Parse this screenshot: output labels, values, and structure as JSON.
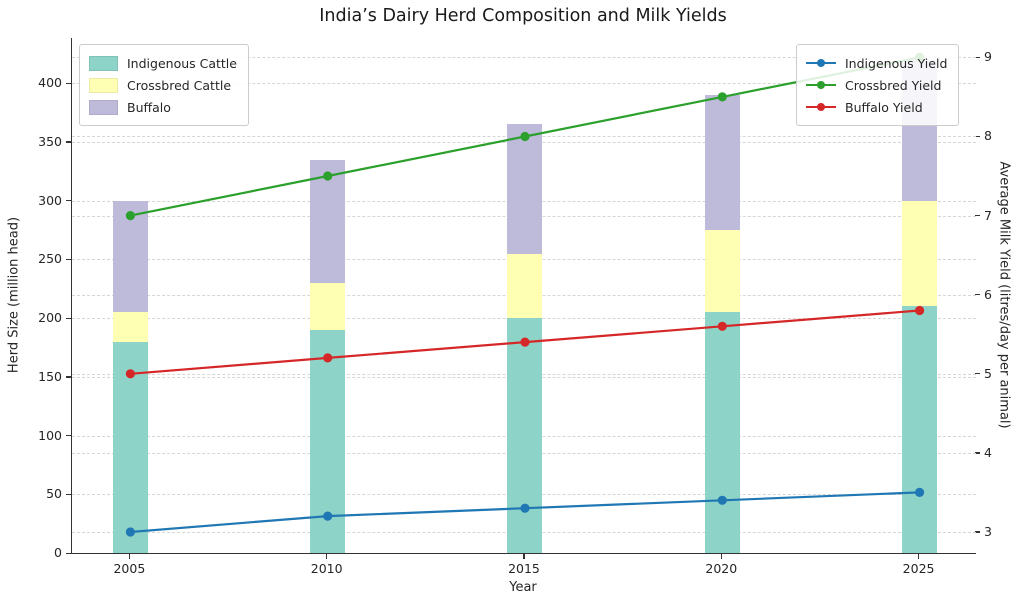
{
  "title": "India’s Dairy Herd Composition and Milk Yields",
  "x_axis": {
    "label": "Year",
    "categories": [
      "2005",
      "2010",
      "2015",
      "2020",
      "2025"
    ]
  },
  "left_axis": {
    "label": "Herd Size (million head)",
    "ticks": [
      0,
      50,
      100,
      150,
      200,
      250,
      300,
      350,
      400
    ],
    "range": [
      0,
      438.5
    ]
  },
  "right_axis": {
    "label": "Average Milk Yield (litres/day per animal)",
    "ticks": [
      3,
      4,
      5,
      6,
      7,
      8,
      9
    ],
    "range": [
      2.734,
      9.245
    ]
  },
  "colors": {
    "indigenous_cattle": "#8dd3c7",
    "crossbred_cattle": "#ffffb3",
    "buffalo": "#bebada",
    "indigenous_yield": "#1f77b4",
    "crossbred_yield": "#2ca02c",
    "buffalo_yield": "#d62728",
    "grid": "#d6d6d6",
    "spine": "#333333",
    "text": "#262626"
  },
  "chart_data": [
    {
      "type": "bar",
      "stacked": true,
      "title": "India’s Dairy Herd Composition and Milk Yields",
      "categories": [
        "2005",
        "2010",
        "2015",
        "2020",
        "2025"
      ],
      "series": [
        {
          "name": "Indigenous Cattle",
          "values": [
            180,
            190,
            200,
            205,
            210
          ],
          "color": "#8dd3c7"
        },
        {
          "name": "Crossbred Cattle",
          "values": [
            25,
            40,
            55,
            70,
            90
          ],
          "color": "#ffffb3"
        },
        {
          "name": "Buffalo",
          "values": [
            95,
            105,
            110,
            115,
            120
          ],
          "color": "#bebada"
        }
      ],
      "stack_totals": [
        300,
        335,
        365,
        390,
        420
      ],
      "xlabel": "Year",
      "ylabel": "Herd Size (million head)",
      "ylim": [
        0,
        438.5
      ],
      "yticks": [
        0,
        50,
        100,
        150,
        200,
        250,
        300,
        350,
        400
      ],
      "grid": true,
      "legend_position": "upper left"
    },
    {
      "type": "line",
      "axis": "right",
      "categories": [
        "2005",
        "2010",
        "2015",
        "2020",
        "2025"
      ],
      "series": [
        {
          "name": "Indigenous Yield",
          "values": [
            3.0,
            3.2,
            3.3,
            3.4,
            3.5
          ],
          "color": "#1f77b4"
        },
        {
          "name": "Crossbred Yield",
          "values": [
            7.0,
            7.5,
            8.0,
            8.5,
            9.0
          ],
          "color": "#2ca02c"
        },
        {
          "name": "Buffalo Yield",
          "values": [
            5.0,
            5.2,
            5.4,
            5.6,
            5.8
          ],
          "color": "#d62728"
        }
      ],
      "ylabel": "Average Milk Yield (litres/day per animal)",
      "ylim": [
        2.734,
        9.245
      ],
      "yticks": [
        3,
        4,
        5,
        6,
        7,
        8,
        9
      ],
      "marker": "circle",
      "legend_position": "upper right"
    }
  ]
}
